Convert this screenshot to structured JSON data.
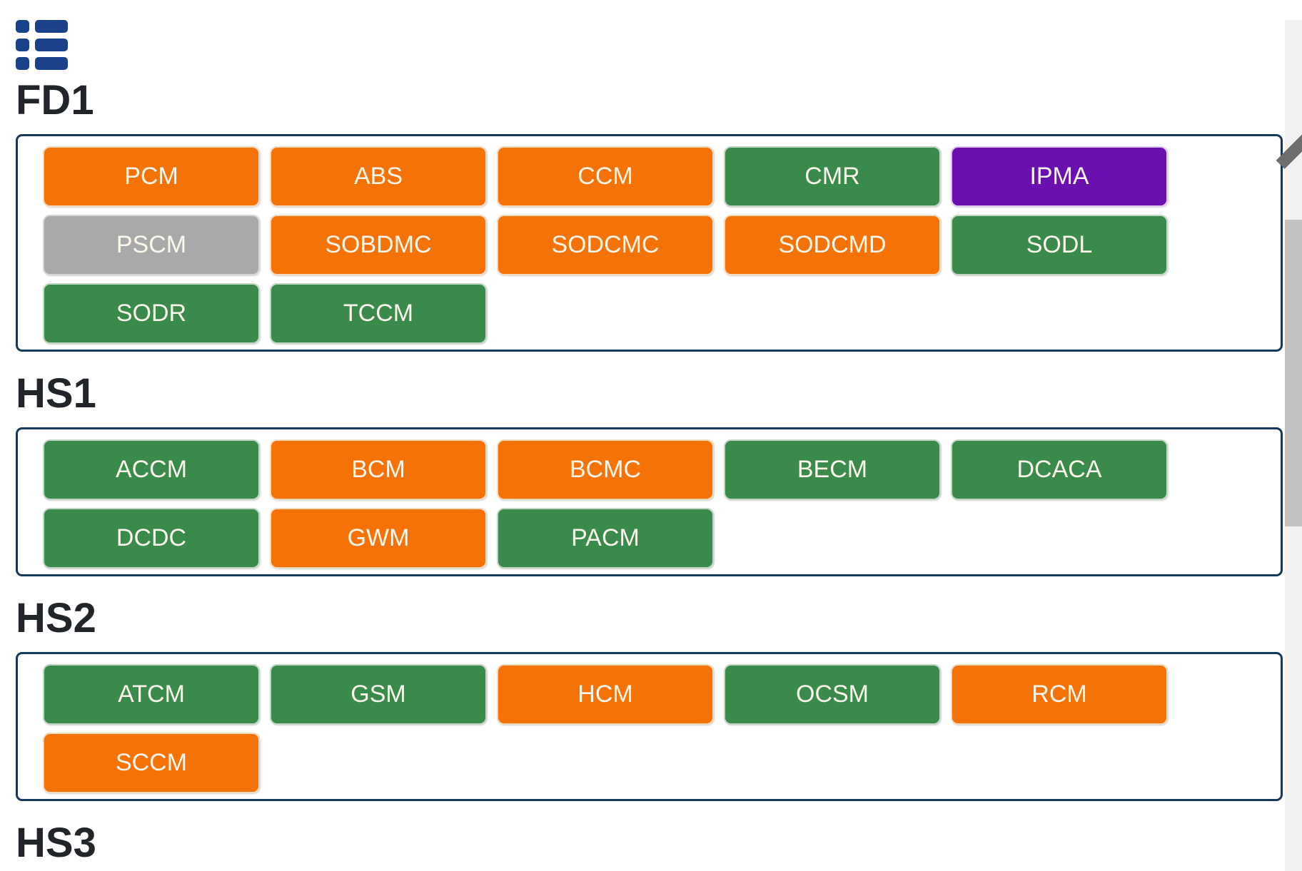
{
  "icon": {
    "name": "list-view-menu-icon"
  },
  "colors": {
    "orange": {
      "fill": "#F57206",
      "border": "#F6D9BF"
    },
    "green": {
      "fill": "#3A8A4C",
      "border": "#C2D6C6"
    },
    "purple": {
      "fill": "#6A10AE",
      "border": "#DCC6EE"
    },
    "gray": {
      "fill": "#A9A9A9",
      "border": "#D6D6D6"
    },
    "container_border": "#16375C",
    "icon_blue": "#1A428A",
    "heading_text": "#212529",
    "button_text": "#FAF6EC",
    "scroll_track": "#F1F1F1",
    "scroll_thumb": "#C2C2C2"
  },
  "sections": [
    {
      "title": "FD1",
      "buttons": [
        {
          "label": "PCM",
          "color": "orange"
        },
        {
          "label": "ABS",
          "color": "orange"
        },
        {
          "label": "CCM",
          "color": "orange"
        },
        {
          "label": "CMR",
          "color": "green"
        },
        {
          "label": "IPMA",
          "color": "purple"
        },
        {
          "label": "PSCM",
          "color": "gray"
        },
        {
          "label": "SOBDMC",
          "color": "orange"
        },
        {
          "label": "SODCMC",
          "color": "orange"
        },
        {
          "label": "SODCMD",
          "color": "orange"
        },
        {
          "label": "SODL",
          "color": "green"
        },
        {
          "label": "SODR",
          "color": "green"
        },
        {
          "label": "TCCM",
          "color": "green"
        }
      ]
    },
    {
      "title": "HS1",
      "buttons": [
        {
          "label": "ACCM",
          "color": "green"
        },
        {
          "label": "BCM",
          "color": "orange"
        },
        {
          "label": "BCMC",
          "color": "orange"
        },
        {
          "label": "BECM",
          "color": "green"
        },
        {
          "label": "DCACA",
          "color": "green"
        },
        {
          "label": "DCDC",
          "color": "green"
        },
        {
          "label": "GWM",
          "color": "orange"
        },
        {
          "label": "PACM",
          "color": "green"
        }
      ]
    },
    {
      "title": "HS2",
      "buttons": [
        {
          "label": "ATCM",
          "color": "green"
        },
        {
          "label": "GSM",
          "color": "green"
        },
        {
          "label": "HCM",
          "color": "orange"
        },
        {
          "label": "OCSM",
          "color": "green"
        },
        {
          "label": "RCM",
          "color": "orange"
        },
        {
          "label": "SCCM",
          "color": "orange"
        }
      ]
    },
    {
      "title": "HS3",
      "buttons": []
    }
  ]
}
